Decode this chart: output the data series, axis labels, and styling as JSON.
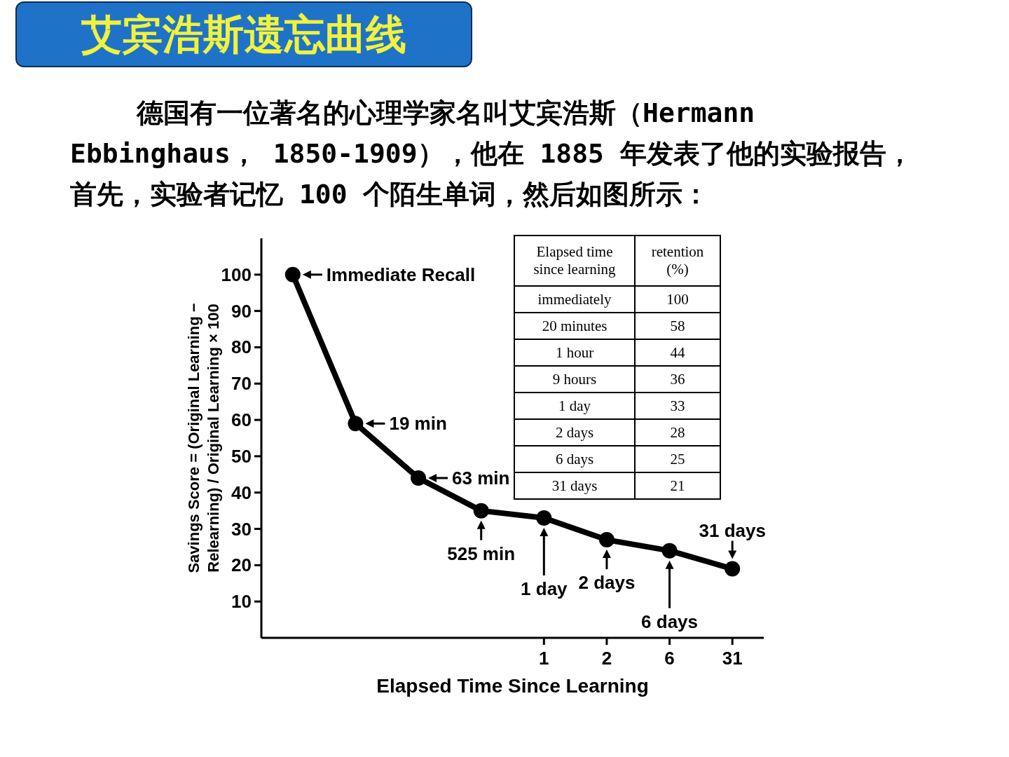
{
  "chart_data": [
    {
      "type": "line",
      "title": "艾宾浩斯遗忘曲线",
      "subtitle": "德国有一位著名的心理学家名叫艾宾浩斯（Hermann Ebbinghaus， 1850-1909），他在 1885 年发表了他的实验报告，首先，实验者记忆 100 个陌生单词，然后如图所示：",
      "xlabel": "Elapsed Time Since Learning",
      "ylabel": "Savings Score = (Original Learning − Relearning) / Original Learning × 100",
      "categories": [
        null,
        null,
        null,
        null,
        "1",
        "2",
        "6",
        "31"
      ],
      "values": [
        100,
        59,
        44,
        35,
        33,
        27,
        24,
        19
      ],
      "color": "#000000",
      "marker": "circle",
      "ylim": [
        0,
        110
      ],
      "yticks": [
        10,
        20,
        30,
        40,
        50,
        60,
        70,
        80,
        90,
        100
      ],
      "annotations": [
        "Immediate Recall",
        "19 min",
        "63 min",
        "525 min",
        "1 day",
        "2 days",
        "6 days",
        "31 days"
      ]
    },
    {
      "type": "other",
      "xlabel": "Elapsed time since learning",
      "ylabel": "retention (%)",
      "categories": [
        "immediately",
        "20 minutes",
        "1 hour",
        "9 hours",
        "1 day",
        "2 days",
        "6 days",
        "31 days"
      ],
      "values": [
        100,
        58,
        44,
        36,
        33,
        28,
        25,
        21
      ],
      "data_labels": true
    }
  ]
}
